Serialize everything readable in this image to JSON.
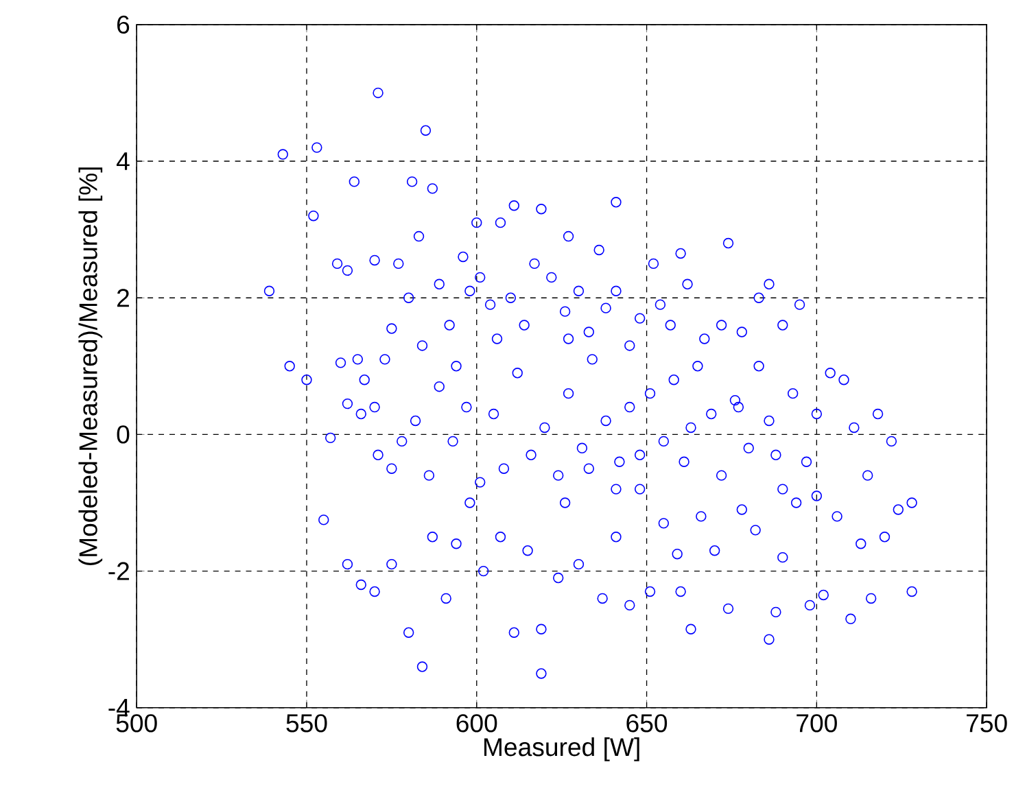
{
  "chart_data": {
    "type": "scatter",
    "xlabel": "Measured [W]",
    "ylabel": "(Modeled-Measured)/Measured [%]",
    "xlim": [
      500,
      750
    ],
    "xticks": [
      500,
      550,
      600,
      650,
      700,
      750
    ],
    "ylim": [
      -4,
      6
    ],
    "yticks": [
      -4,
      -2,
      0,
      2,
      4,
      6
    ],
    "grid": true,
    "marker": "circle",
    "series": [
      {
        "color": "#0000ff",
        "x": [
          571,
          543,
          553,
          585,
          641,
          539,
          552,
          564,
          581,
          587,
          600,
          611,
          619,
          559,
          562,
          570,
          577,
          583,
          596,
          607,
          627,
          636,
          660,
          674,
          545,
          550,
          557,
          555,
          560,
          565,
          562,
          566,
          570,
          573,
          575,
          580,
          584,
          589,
          592,
          594,
          598,
          601,
          604,
          606,
          610,
          614,
          617,
          622,
          626,
          630,
          633,
          638,
          641,
          645,
          648,
          652,
          654,
          657,
          662,
          667,
          672,
          678,
          683,
          686,
          690,
          695,
          562,
          566,
          570,
          575,
          580,
          584,
          587,
          591,
          594,
          598,
          602,
          607,
          611,
          615,
          619,
          619,
          624,
          626,
          630,
          633,
          637,
          641,
          645,
          648,
          651,
          655,
          659,
          663,
          666,
          670,
          674,
          678,
          682,
          686,
          688,
          690,
          694,
          698,
          702,
          706,
          710,
          713,
          716,
          720,
          724,
          728,
          728,
          722,
          718,
          715,
          711,
          708,
          704,
          700,
          697,
          693,
          690,
          686,
          683,
          680,
          676,
          672,
          669,
          665,
          661,
          658,
          655,
          651,
          648,
          645,
          641,
          638,
          634,
          631,
          627,
          624,
          620,
          616,
          612,
          608,
          605,
          601,
          597,
          593,
          589,
          586,
          582,
          578,
          575,
          571,
          567,
          663,
          677,
          688,
          700,
          660,
          642,
          627
        ],
        "values": [
          5.0,
          4.1,
          4.2,
          4.45,
          3.4,
          2.1,
          3.2,
          3.7,
          3.7,
          3.6,
          3.1,
          3.35,
          3.3,
          2.5,
          2.4,
          2.55,
          2.5,
          2.9,
          2.6,
          3.1,
          2.9,
          2.7,
          2.65,
          2.8,
          1.0,
          0.8,
          -0.05,
          -1.25,
          1.05,
          1.1,
          0.45,
          0.3,
          0.4,
          1.1,
          1.55,
          2.0,
          1.3,
          2.2,
          1.6,
          1.0,
          2.1,
          2.3,
          1.9,
          1.4,
          2.0,
          1.6,
          2.5,
          2.3,
          1.8,
          2.1,
          1.5,
          1.85,
          2.1,
          1.3,
          1.7,
          2.5,
          1.9,
          1.6,
          2.2,
          1.4,
          1.6,
          1.5,
          2.0,
          2.2,
          1.6,
          1.9,
          -1.9,
          -2.2,
          -2.3,
          -1.9,
          -2.9,
          -3.4,
          -1.5,
          -2.4,
          -1.6,
          -1.0,
          -2.0,
          -1.5,
          -2.9,
          -1.7,
          -3.5,
          -2.85,
          -2.1,
          -1.0,
          -1.9,
          -0.5,
          -2.4,
          -1.5,
          -2.5,
          -0.8,
          -2.3,
          -1.3,
          -1.75,
          -2.85,
          -1.2,
          -1.7,
          -2.55,
          -1.1,
          -1.4,
          -3.0,
          -2.6,
          -1.8,
          -1.0,
          -2.5,
          -2.35,
          -1.2,
          -2.7,
          -1.6,
          -2.4,
          -1.5,
          -1.1,
          -2.3,
          -1.0,
          -0.1,
          0.3,
          -0.6,
          0.1,
          0.8,
          0.9,
          0.3,
          -0.4,
          0.6,
          -0.8,
          0.2,
          1.0,
          -0.2,
          0.5,
          -0.6,
          0.3,
          1.0,
          -0.4,
          0.8,
          -0.1,
          0.6,
          -0.3,
          0.4,
          -0.8,
          0.2,
          1.1,
          -0.2,
          0.6,
          -0.6,
          0.1,
          -0.3,
          0.9,
          -0.5,
          0.3,
          -0.7,
          0.4,
          -0.1,
          0.7,
          -0.6,
          0.2,
          -0.1,
          -0.5,
          -0.3,
          0.8,
          0.1,
          0.4,
          -0.3,
          -0.9,
          -2.3,
          -0.4,
          1.4
        ]
      }
    ]
  }
}
